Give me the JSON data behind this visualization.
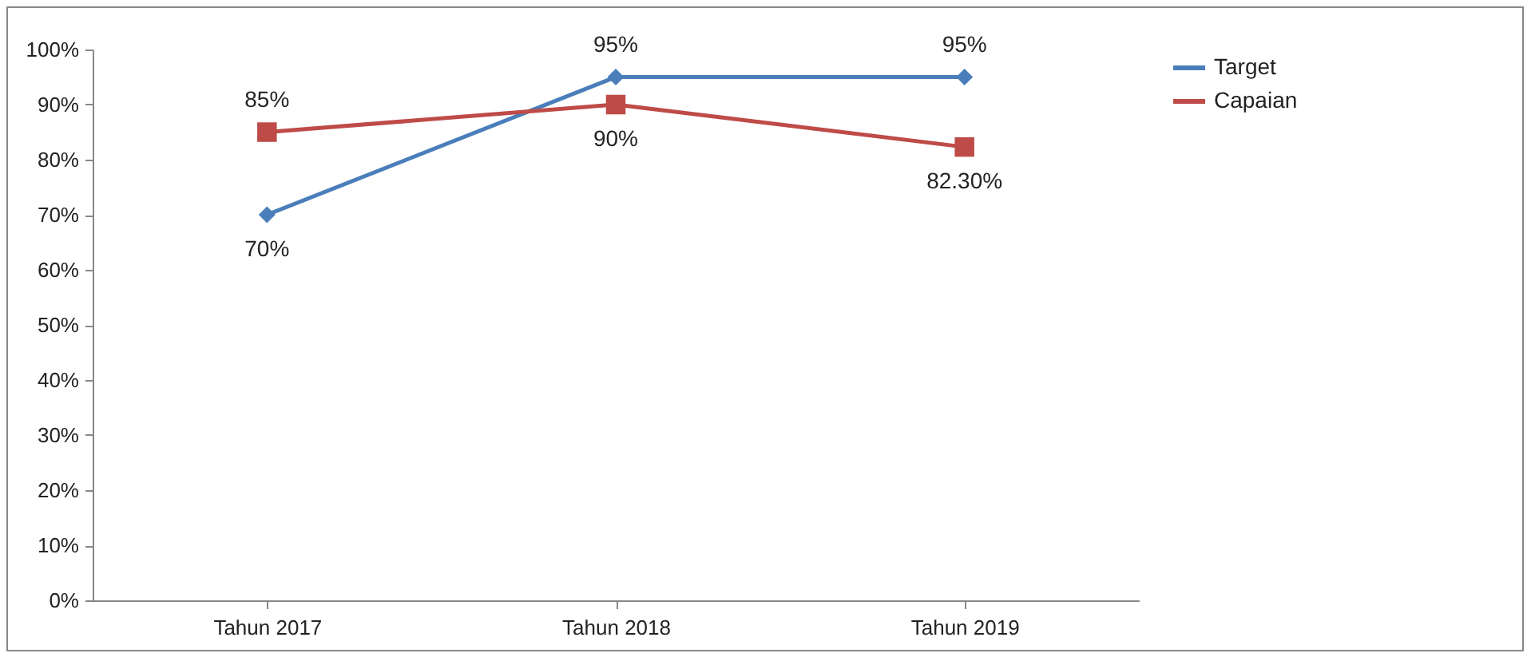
{
  "chart_data": {
    "type": "line",
    "categories": [
      "Tahun 2017",
      "Tahun 2018",
      "Tahun 2019"
    ],
    "series": [
      {
        "name": "Target",
        "color": "#4a7ebb",
        "marker": "diamond",
        "values": [
          70,
          95,
          95
        ],
        "value_labels": [
          "70%",
          "95%",
          "95%"
        ]
      },
      {
        "name": "Capaian",
        "color": "#be4b48",
        "marker": "square",
        "values": [
          85,
          90,
          82.3
        ],
        "value_labels": [
          "85%",
          "90%",
          "82.30%"
        ]
      }
    ],
    "ylim": [
      0,
      100
    ],
    "yticks": [
      {
        "value": 0,
        "label": "0%"
      },
      {
        "value": 10,
        "label": "10%"
      },
      {
        "value": 20,
        "label": "20%"
      },
      {
        "value": 30,
        "label": "30%"
      },
      {
        "value": 40,
        "label": "40%"
      },
      {
        "value": 50,
        "label": "50%"
      },
      {
        "value": 60,
        "label": "60%"
      },
      {
        "value": 70,
        "label": "70%"
      },
      {
        "value": 80,
        "label": "80%"
      },
      {
        "value": 90,
        "label": "90%"
      },
      {
        "value": 100,
        "label": "100%"
      }
    ],
    "grid": false,
    "legend": "right"
  }
}
